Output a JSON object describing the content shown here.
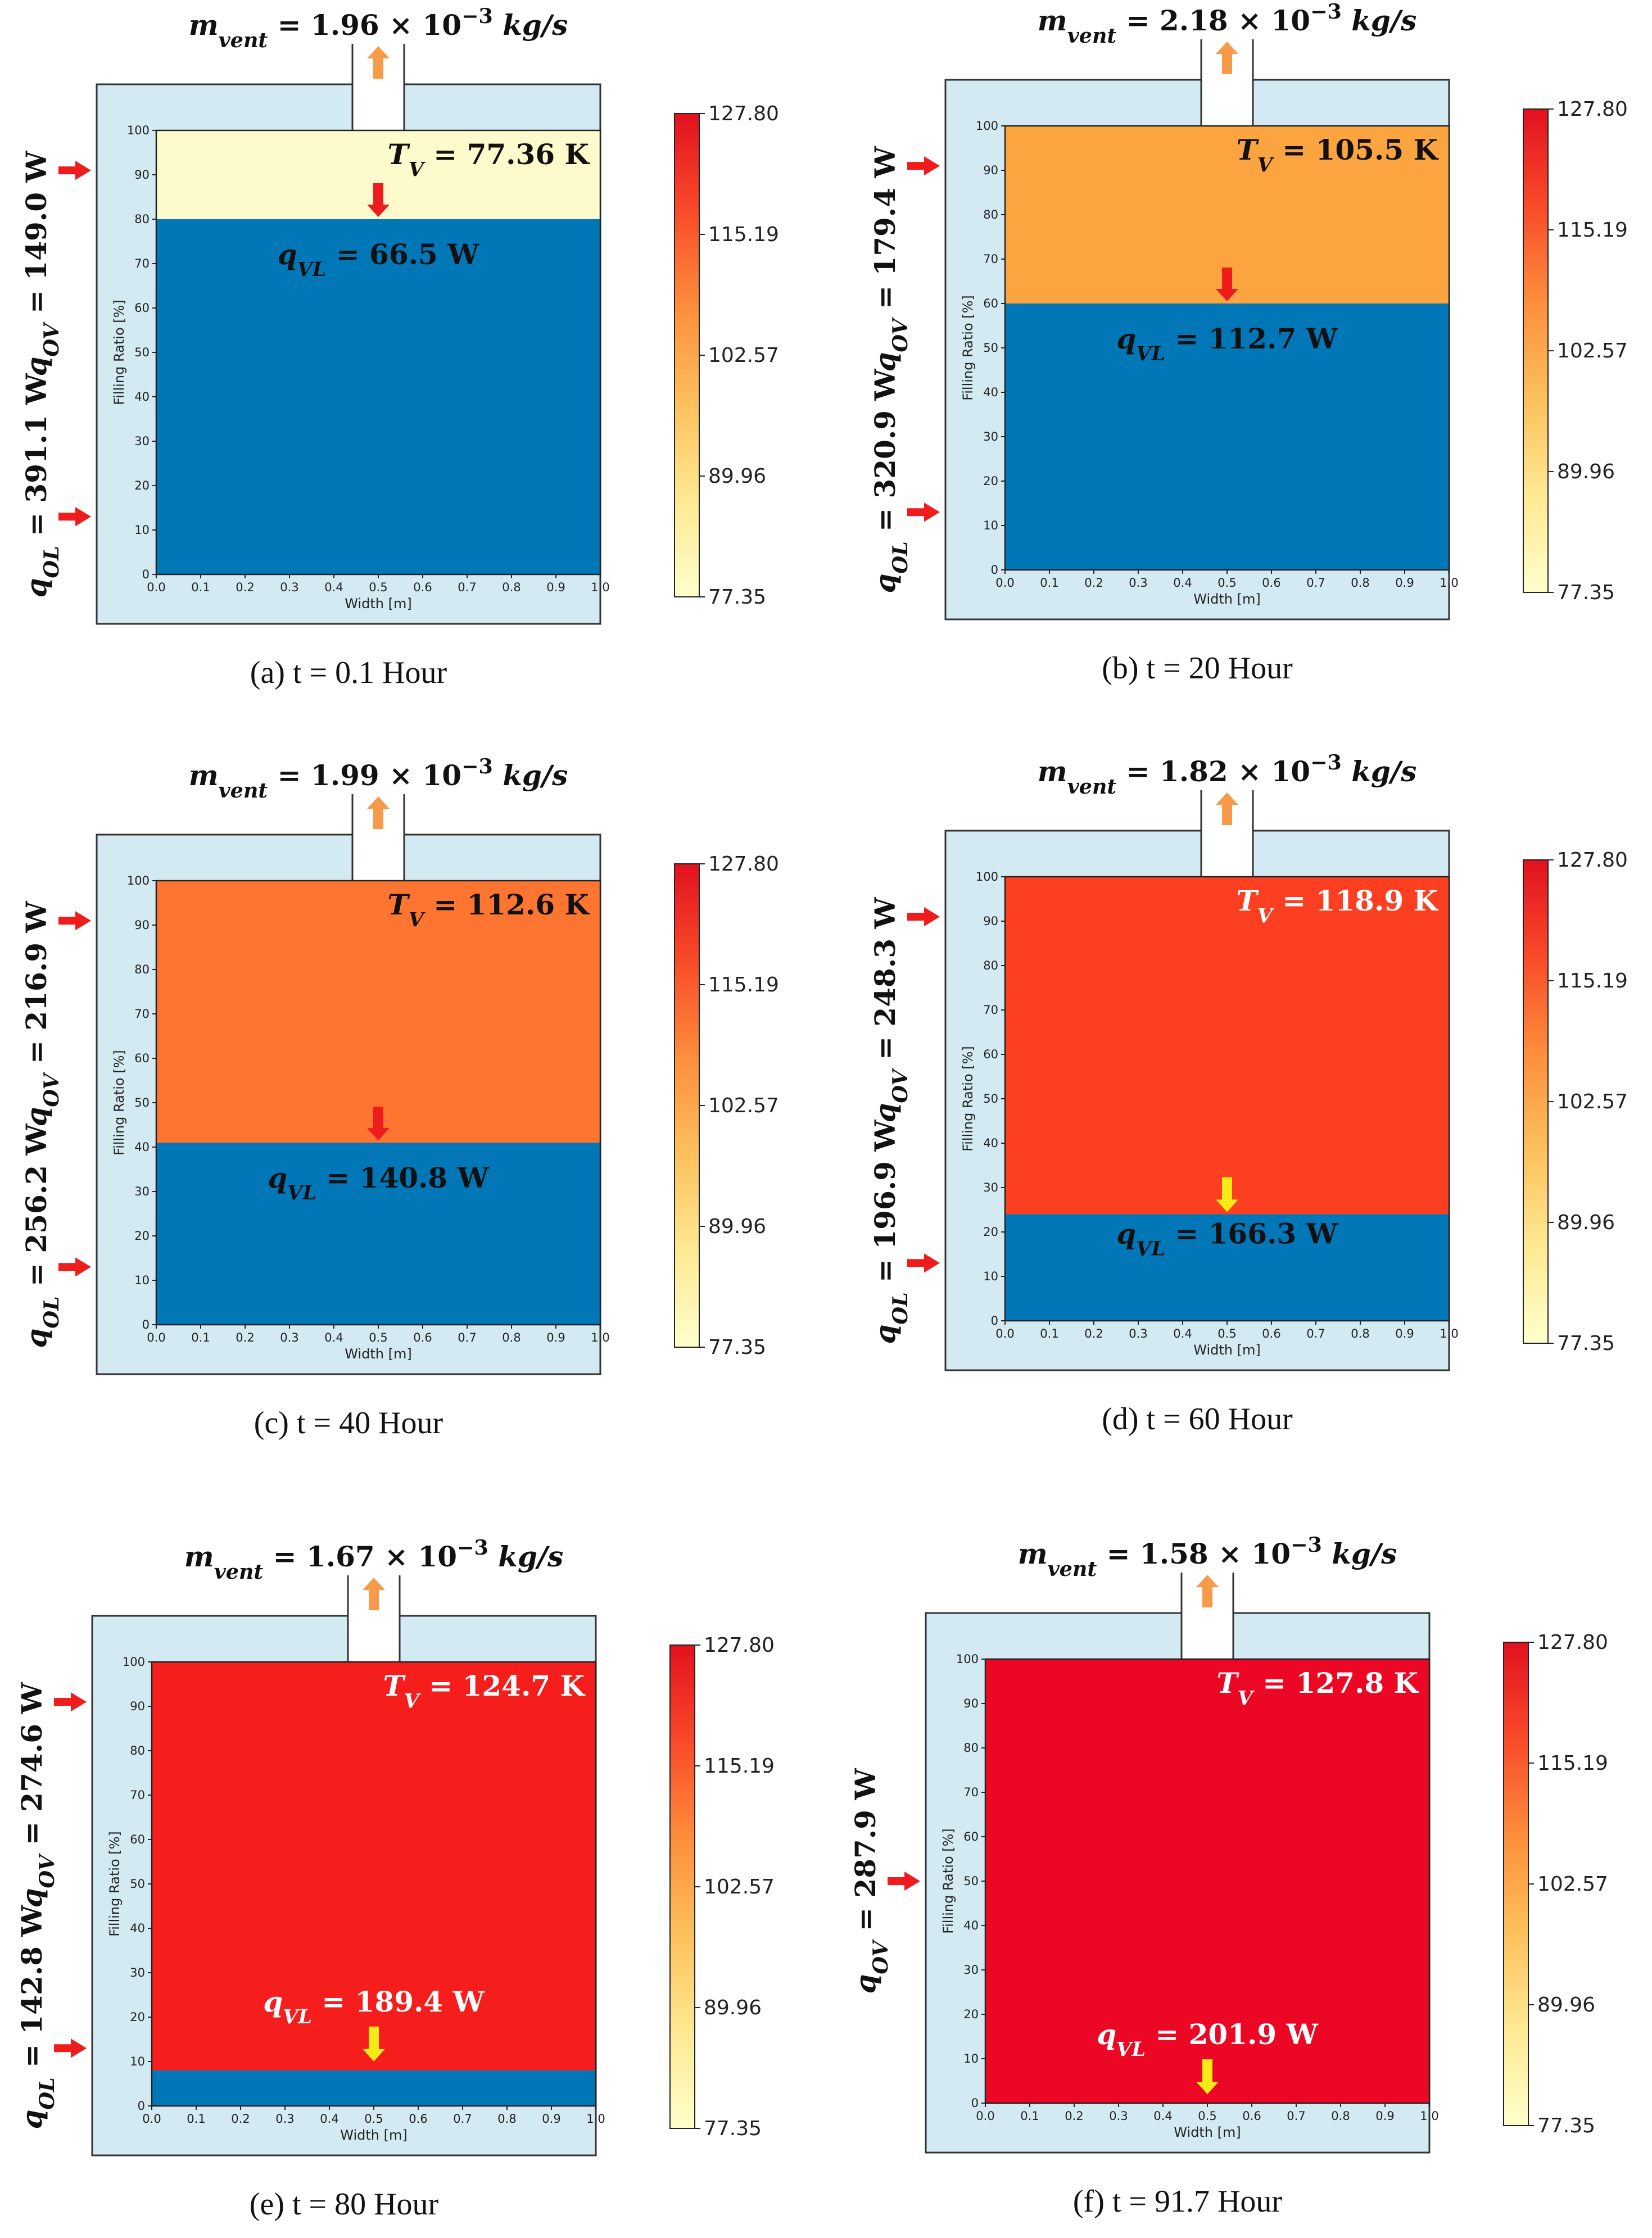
{
  "colors": {
    "liquid": "#0277b8",
    "insulation": "#d3eaf2",
    "red_arrow": "#ee1c1c",
    "orange_arrow": "#f79a4a",
    "yellow_arrow": "#f7ea16",
    "text_dark": "#111111",
    "text_light": "#ffffff"
  },
  "colorbar": {
    "ticks": [
      "127.80",
      "115.19",
      "102.57",
      "89.96",
      "77.35"
    ],
    "min": 77.35,
    "max": 127.8,
    "colormap": "YlOrRd"
  },
  "chart_data": [
    {
      "type": "heatmap",
      "caption": "(a) t = 0.1 Hour",
      "xlabel": "Width [m]",
      "ylabel": "Filling Ratio [%]",
      "xlim": [
        0.0,
        1.0
      ],
      "ylim": [
        0,
        100
      ],
      "xticks": [
        "0.0",
        "0.1",
        "0.2",
        "0.3",
        "0.4",
        "0.5",
        "0.6",
        "0.7",
        "0.8",
        "0.9",
        "1.0"
      ],
      "yticks": [
        "0",
        "10",
        "20",
        "30",
        "40",
        "50",
        "60",
        "70",
        "80",
        "90",
        "100"
      ],
      "liquid_level": 80,
      "vapor_color": "#fdfacb",
      "vapor_temp_label": "T_V = 77.36 K",
      "vapor_temp_K": 77.36,
      "m_vent_label": "m_vent = 1.96 × 10^−3 kg/s",
      "m_vent_kg_s": 0.00196,
      "q_vl_label": "q_VL = 66.5 W",
      "q_vl_W": 66.5,
      "q_vl_arrow": "red",
      "q_ov_label": "q_OV = 149.0 W",
      "q_ov_W": 149.0,
      "q_ol_label": "q_OL = 391.1 W",
      "q_ol_W": 391.1,
      "tv_light": false,
      "qvl_light": false
    },
    {
      "type": "heatmap",
      "caption": "(b) t = 20 Hour",
      "xlabel": "Width [m]",
      "ylabel": "Filling Ratio [%]",
      "xlim": [
        0.0,
        1.0
      ],
      "ylim": [
        0,
        100
      ],
      "xticks": [
        "0.0",
        "0.1",
        "0.2",
        "0.3",
        "0.4",
        "0.5",
        "0.6",
        "0.7",
        "0.8",
        "0.9",
        "1.0"
      ],
      "yticks": [
        "0",
        "10",
        "20",
        "30",
        "40",
        "50",
        "60",
        "70",
        "80",
        "90",
        "100"
      ],
      "liquid_level": 60,
      "vapor_color": "#fca43f",
      "vapor_temp_label": "T_V = 105.5 K",
      "vapor_temp_K": 105.5,
      "m_vent_label": "m_vent = 2.18 × 10^−3 kg/s",
      "m_vent_kg_s": 0.00218,
      "q_vl_label": "q_VL = 112.7 W",
      "q_vl_W": 112.7,
      "q_vl_arrow": "red",
      "q_ov_label": "q_OV = 179.4 W",
      "q_ov_W": 179.4,
      "q_ol_label": "q_OL = 320.9 W",
      "q_ol_W": 320.9,
      "tv_light": false,
      "qvl_light": false
    },
    {
      "type": "heatmap",
      "caption": "(c) t = 40 Hour",
      "xlabel": "Width [m]",
      "ylabel": "Filling Ratio [%]",
      "xlim": [
        0.0,
        1.0
      ],
      "ylim": [
        0,
        100
      ],
      "xticks": [
        "0.0",
        "0.1",
        "0.2",
        "0.3",
        "0.4",
        "0.5",
        "0.6",
        "0.7",
        "0.8",
        "0.9",
        "1.0"
      ],
      "yticks": [
        "0",
        "10",
        "20",
        "30",
        "40",
        "50",
        "60",
        "70",
        "80",
        "90",
        "100"
      ],
      "liquid_level": 41,
      "vapor_color": "#fd7530",
      "vapor_temp_label": "T_V = 112.6 K",
      "vapor_temp_K": 112.6,
      "m_vent_label": "m_vent = 1.99 × 10^−3 kg/s",
      "m_vent_kg_s": 0.00199,
      "q_vl_label": "q_VL = 140.8 W",
      "q_vl_W": 140.8,
      "q_vl_arrow": "red",
      "q_ov_label": "q_OV = 216.9 W",
      "q_ov_W": 216.9,
      "q_ol_label": "q_OL = 256.2 W",
      "q_ol_W": 256.2,
      "tv_light": false,
      "qvl_light": false
    },
    {
      "type": "heatmap",
      "caption": "(d) t = 60 Hour",
      "xlabel": "Width [m]",
      "ylabel": "Filling Ratio [%]",
      "xlim": [
        0.0,
        1.0
      ],
      "ylim": [
        0,
        100
      ],
      "xticks": [
        "0.0",
        "0.1",
        "0.2",
        "0.3",
        "0.4",
        "0.5",
        "0.6",
        "0.7",
        "0.8",
        "0.9",
        "1.0"
      ],
      "yticks": [
        "0",
        "10",
        "20",
        "30",
        "40",
        "50",
        "60",
        "70",
        "80",
        "90",
        "100"
      ],
      "liquid_level": 24,
      "vapor_color": "#fc3f20",
      "vapor_temp_label": "T_V = 118.9 K",
      "vapor_temp_K": 118.9,
      "m_vent_label": "m_vent = 1.82 × 10^−3 kg/s",
      "m_vent_kg_s": 0.00182,
      "q_vl_label": "q_VL = 166.3 W",
      "q_vl_W": 166.3,
      "q_vl_arrow": "yellow",
      "q_ov_label": "q_OV = 248.3 W",
      "q_ov_W": 248.3,
      "q_ol_label": "q_OL = 196.9 W",
      "q_ol_W": 196.9,
      "tv_light": true,
      "qvl_light": false
    },
    {
      "type": "heatmap",
      "caption": "(e) t = 80 Hour",
      "xlabel": "Width [m]",
      "ylabel": "Filling Ratio [%]",
      "xlim": [
        0.0,
        1.0
      ],
      "ylim": [
        0,
        100
      ],
      "xticks": [
        "0.0",
        "0.1",
        "0.2",
        "0.3",
        "0.4",
        "0.5",
        "0.6",
        "0.7",
        "0.8",
        "0.9",
        "1.0"
      ],
      "yticks": [
        "0",
        "10",
        "20",
        "30",
        "40",
        "50",
        "60",
        "70",
        "80",
        "90",
        "100"
      ],
      "liquid_level": 8,
      "vapor_color": "#f51e1c",
      "vapor_temp_label": "T_V = 124.7 K",
      "vapor_temp_K": 124.7,
      "m_vent_label": "m_vent = 1.67 × 10^−3 kg/s",
      "m_vent_kg_s": 0.00167,
      "q_vl_label": "q_VL = 189.4 W",
      "q_vl_W": 189.4,
      "q_vl_arrow": "yellow",
      "q_ov_label": "q_OV = 274.6 W",
      "q_ov_W": 274.6,
      "q_ol_label": "q_OL = 142.8 W",
      "q_ol_W": 142.8,
      "tv_light": true,
      "qvl_light": true
    },
    {
      "type": "heatmap",
      "caption": "(f) t = 91.7 Hour",
      "xlabel": "Width [m]",
      "ylabel": "Filling Ratio [%]",
      "xlim": [
        0.0,
        1.0
      ],
      "ylim": [
        0,
        100
      ],
      "xticks": [
        "0.0",
        "0.1",
        "0.2",
        "0.3",
        "0.4",
        "0.5",
        "0.6",
        "0.7",
        "0.8",
        "0.9",
        "1.0"
      ],
      "yticks": [
        "0",
        "10",
        "20",
        "30",
        "40",
        "50",
        "60",
        "70",
        "80",
        "90",
        "100"
      ],
      "liquid_level": 0,
      "vapor_color": "#ec0724",
      "vapor_temp_label": "T_V = 127.8 K",
      "vapor_temp_K": 127.8,
      "m_vent_label": "m_vent = 1.58 × 10^−3 kg/s",
      "m_vent_kg_s": 0.00158,
      "q_vl_label": "q_VL = 201.9 W",
      "q_vl_W": 201.9,
      "q_vl_arrow": "yellow",
      "q_ov_label": "q_OV = 287.9 W",
      "q_ov_W": 287.9,
      "q_ol_label": null,
      "q_ol_W": null,
      "tv_light": true,
      "qvl_light": true
    }
  ]
}
